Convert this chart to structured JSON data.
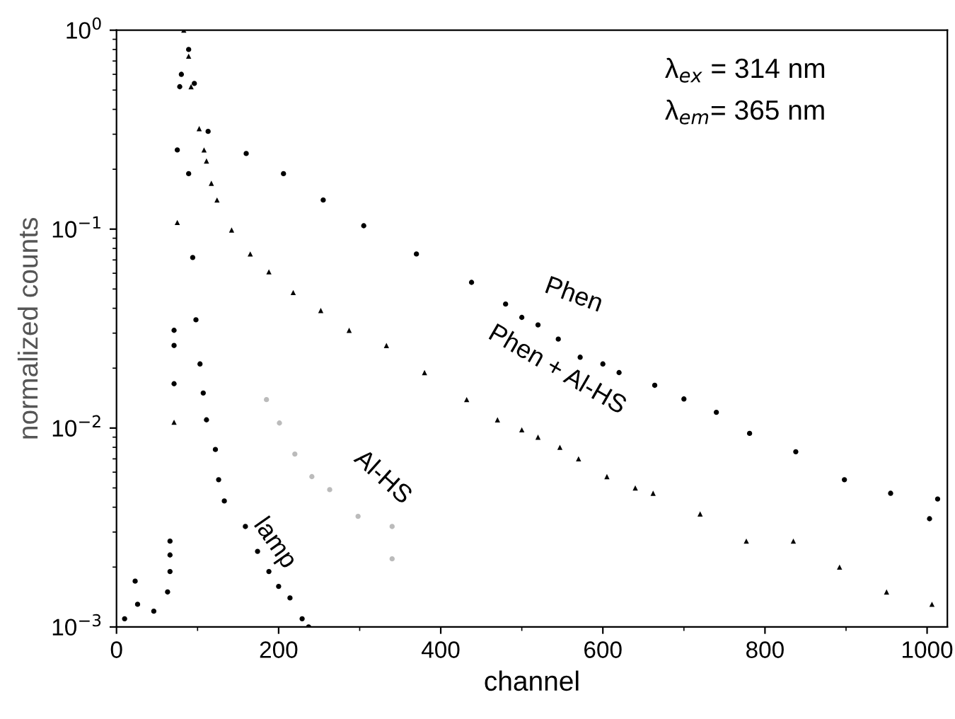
{
  "chart_data": {
    "type": "scatter",
    "xlabel": "channel",
    "ylabel": "normalized counts",
    "log": "y",
    "xlim": [
      0,
      1025
    ],
    "ylim": [
      0.001,
      1
    ],
    "xticks": [
      0,
      200,
      400,
      600,
      800,
      1000
    ],
    "yticks": [
      {
        "value": 0.001,
        "label": "10$^{−3}$"
      },
      {
        "value": 0.01,
        "label": "10$^{−2}$"
      },
      {
        "value": 0.1,
        "label": "10$^{−1}$"
      },
      {
        "value": 1,
        "label": "10$^{0}$"
      }
    ],
    "grid": false,
    "legend": false,
    "annotations": [
      "λ$_{ex}$ = 314 nm",
      "λ$_{em}$= 365 nm"
    ],
    "series": [
      {
        "name": "Phen",
        "color": "#000000",
        "marker": "circle",
        "x": [
          80,
          84,
          89,
          96,
          113,
          160,
          206,
          255,
          305,
          370,
          438,
          480,
          500,
          520,
          545,
          572,
          600,
          620,
          664,
          700,
          740,
          781,
          838,
          898,
          955,
          1003,
          1013
        ],
        "values": [
          0.6,
          null,
          0.8,
          0.54,
          0.31,
          0.24,
          0.19,
          0.14,
          0.104,
          0.075,
          0.054,
          0.042,
          0.036,
          0.033,
          0.028,
          0.0227,
          0.021,
          0.019,
          0.0164,
          0.014,
          0.012,
          0.0094,
          0.0076,
          0.0055,
          0.0047,
          0.0035,
          0.0044
        ]
      },
      {
        "name": "Phen + Al-HS",
        "color": "#000000",
        "marker": "triangle",
        "x": [
          71,
          75,
          80,
          83,
          89,
          92,
          102,
          108,
          111,
          117,
          124,
          142,
          165,
          188,
          218,
          252,
          287,
          333,
          380,
          432,
          470,
          500,
          520,
          547,
          570,
          605,
          640,
          662,
          720,
          777,
          835,
          892,
          950,
          1006
        ],
        "values": [
          0.0107,
          0.108,
          null,
          1.0,
          0.74,
          0.52,
          0.32,
          0.25,
          0.22,
          0.17,
          0.14,
          0.099,
          0.075,
          0.061,
          0.048,
          0.039,
          0.031,
          0.026,
          0.019,
          0.0139,
          0.011,
          0.0098,
          0.009,
          0.008,
          0.007,
          0.0057,
          0.005,
          0.0047,
          0.0037,
          0.0027,
          0.0027,
          0.002,
          0.0015,
          0.0013
        ]
      },
      {
        "name": "Al-HS",
        "color": "#bbbbbb",
        "marker": "circle",
        "x": [
          185,
          201,
          220,
          241,
          263,
          298,
          340,
          340
        ],
        "values": [
          0.0139,
          0.0106,
          0.0074,
          0.0057,
          0.0049,
          0.0036,
          0.0032,
          0.0022
        ]
      },
      {
        "name": "lamp",
        "color": "#000000",
        "marker": "circle",
        "x": [
          10,
          23,
          26,
          46,
          54,
          63,
          66,
          66,
          66,
          71,
          71,
          71,
          75,
          78,
          84,
          89,
          94,
          98,
          103,
          107,
          111,
          122,
          126,
          133,
          159,
          174,
          188,
          200,
          214,
          229,
          237
        ],
        "values": [
          0.0011,
          0.0017,
          0.0013,
          0.0012,
          null,
          0.0015,
          0.0019,
          0.0023,
          0.0027,
          0.0167,
          0.026,
          0.031,
          0.25,
          0.52,
          null,
          0.19,
          0.072,
          0.035,
          0.021,
          0.015,
          0.011,
          0.0078,
          0.0055,
          0.0043,
          0.0032,
          0.0024,
          0.0019,
          0.0016,
          0.0014,
          0.0011,
          0.001
        ]
      }
    ]
  }
}
